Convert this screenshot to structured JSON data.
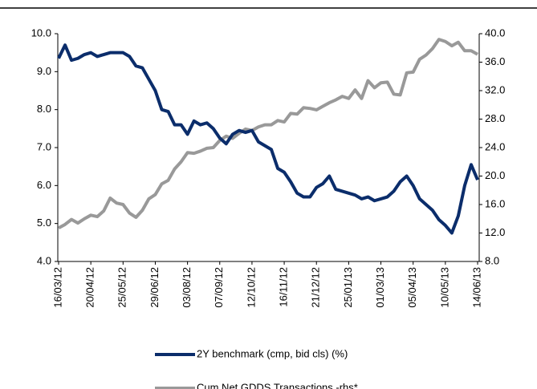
{
  "chart_data": {
    "type": "line",
    "categories": [
      "16/03/12",
      null,
      null,
      null,
      null,
      "20/04/12",
      null,
      null,
      null,
      null,
      "25/05/12",
      null,
      null,
      null,
      null,
      "29/06/12",
      null,
      null,
      null,
      null,
      "03/08/12",
      null,
      null,
      null,
      null,
      "07/09/12",
      null,
      null,
      null,
      null,
      "12/10/12",
      null,
      null,
      null,
      null,
      "16/11/12",
      null,
      null,
      null,
      null,
      "21/12/12",
      null,
      null,
      null,
      null,
      "25/01/13",
      null,
      null,
      null,
      null,
      "01/03/13",
      null,
      null,
      null,
      null,
      "05/04/13",
      null,
      null,
      null,
      null,
      "10/05/13",
      null,
      null,
      null,
      null,
      "14/06/13"
    ],
    "series": [
      {
        "name": "2Y benchmark (cmp, bid cls) (%)",
        "color": "#0b2d6b",
        "values": [
          9.35,
          9.7,
          9.3,
          9.35,
          9.45,
          9.5,
          9.4,
          9.45,
          9.5,
          9.5,
          9.5,
          9.4,
          9.15,
          9.1,
          8.8,
          8.5,
          8.0,
          7.95,
          7.6,
          7.6,
          7.35,
          7.7,
          7.6,
          7.65,
          7.5,
          7.25,
          7.1,
          7.35,
          7.45,
          7.4,
          7.45,
          7.15,
          7.05,
          6.95,
          6.45,
          6.35,
          6.1,
          5.8,
          5.7,
          5.7,
          5.95,
          6.05,
          6.25,
          5.9,
          5.85,
          5.8,
          5.75,
          5.65,
          5.7,
          5.6,
          5.65,
          5.7,
          5.85,
          6.1,
          6.25,
          6.0,
          5.65,
          5.5,
          5.35,
          5.1,
          4.95,
          4.75,
          5.2,
          6.0,
          6.55,
          6.15
        ]
      },
      {
        "name": "Cum Net GDDS Transactions -rhs*",
        "color": "#999999",
        "axis": "y2",
        "values": [
          12.7,
          13.2,
          13.9,
          13.4,
          14.0,
          14.5,
          14.3,
          15.1,
          16.9,
          16.2,
          16.0,
          14.8,
          14.2,
          15.2,
          16.8,
          17.4,
          18.9,
          19.4,
          21.0,
          22.0,
          23.3,
          23.2,
          23.5,
          23.9,
          24.0,
          25.0,
          25.6,
          25.3,
          26.0,
          26.6,
          26.4,
          26.9,
          27.2,
          27.2,
          27.8,
          27.6,
          28.8,
          28.7,
          29.6,
          29.5,
          29.3,
          29.8,
          30.3,
          30.7,
          31.2,
          30.9,
          32.1,
          30.9,
          33.4,
          32.4,
          33.1,
          33.2,
          31.5,
          31.4,
          34.5,
          34.6,
          36.4,
          37.0,
          37.9,
          39.2,
          38.9,
          38.3,
          38.8,
          37.6,
          37.6,
          37.1
        ]
      }
    ],
    "ylim": [
      4,
      10
    ],
    "yticks": [
      {
        "value": 4,
        "label": "4.0"
      },
      {
        "value": 5,
        "label": "5.0"
      },
      {
        "value": 6,
        "label": "6.0"
      },
      {
        "value": 7,
        "label": "7.0"
      },
      {
        "value": 8,
        "label": "8.0"
      },
      {
        "value": 9,
        "label": "9.0"
      },
      {
        "value": 10,
        "label": "10.0"
      }
    ],
    "y2lim": [
      8,
      40
    ],
    "y2ticks": [
      {
        "value": 8,
        "label": "8.0"
      },
      {
        "value": 12,
        "label": "12.0"
      },
      {
        "value": 16,
        "label": "16.0"
      },
      {
        "value": 20,
        "label": "20.0"
      },
      {
        "value": 24,
        "label": "24.0"
      },
      {
        "value": 28,
        "label": "28.0"
      },
      {
        "value": 32,
        "label": "32.0"
      },
      {
        "value": 36,
        "label": "36.0"
      },
      {
        "value": 40,
        "label": "40.0"
      }
    ],
    "grid": false
  }
}
